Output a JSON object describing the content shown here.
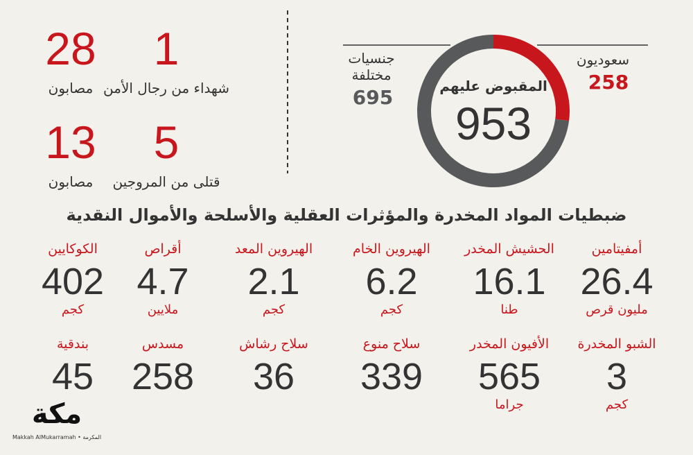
{
  "donut": {
    "total_label": "المقبوض عليهم",
    "total": 953,
    "segments": [
      {
        "name": "سعوديون",
        "value": 258,
        "color": "#c8161d"
      },
      {
        "name": "جنسيات مختلفة",
        "value": 695,
        "color": "#58595b"
      }
    ]
  },
  "casualties": [
    {
      "value": "1",
      "label": "شهداء من رجال الأمن"
    },
    {
      "value": "28",
      "label": "مصابون"
    },
    {
      "value": "5",
      "label": "قتلى من المروجين"
    },
    {
      "value": "13",
      "label": "مصابون"
    }
  ],
  "seizures_title": "ضبطيات المواد المخدرة والمؤثرات العقلية والأسلحة والأموال النقدية",
  "seizures": [
    {
      "label": "أمفيتامين",
      "value": "26.4",
      "unit": "مليون قرص"
    },
    {
      "label": "الحشيش المخدر",
      "value": "16.1",
      "unit": "طنا"
    },
    {
      "label": "الهيروين الخام",
      "value": "6.2",
      "unit": "كجم"
    },
    {
      "label": "الهيروين المعد",
      "value": "2.1",
      "unit": "كجم"
    },
    {
      "label": "أقراص",
      "value": "4.7",
      "unit": "ملايين"
    },
    {
      "label": "الكوكايين",
      "value": "402",
      "unit": "كجم"
    },
    {
      "label": "الشبو المخدرة",
      "value": "3",
      "unit": "كجم"
    },
    {
      "label": "الأفيون المخدر",
      "value": "565",
      "unit": "جراما"
    },
    {
      "label": "سلاح منوع",
      "value": "339"
    },
    {
      "label": "سلاح رشاش",
      "value": "36"
    },
    {
      "label": "مسدس",
      "value": "258"
    },
    {
      "label": "بندقية",
      "value": "45"
    }
  ],
  "logo": {
    "name": "مكة",
    "subtitle": "Makkah AlMukarramah • المكرمة"
  }
}
